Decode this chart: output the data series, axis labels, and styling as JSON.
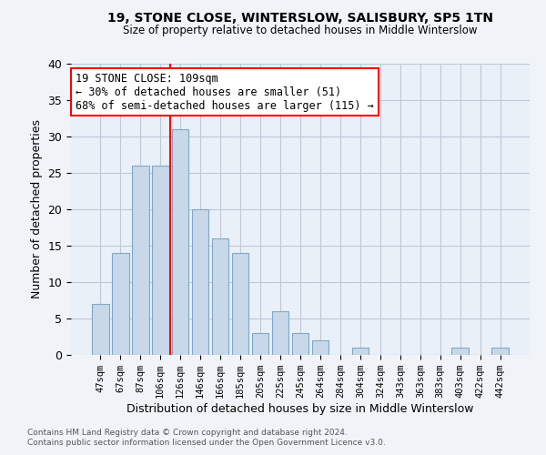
{
  "title1": "19, STONE CLOSE, WINTERSLOW, SALISBURY, SP5 1TN",
  "title2": "Size of property relative to detached houses in Middle Winterslow",
  "xlabel": "Distribution of detached houses by size in Middle Winterslow",
  "ylabel": "Number of detached properties",
  "bar_labels": [
    "47sqm",
    "67sqm",
    "87sqm",
    "106sqm",
    "126sqm",
    "146sqm",
    "166sqm",
    "185sqm",
    "205sqm",
    "225sqm",
    "245sqm",
    "264sqm",
    "284sqm",
    "304sqm",
    "324sqm",
    "343sqm",
    "363sqm",
    "383sqm",
    "403sqm",
    "422sqm",
    "442sqm"
  ],
  "bar_values": [
    7,
    14,
    26,
    26,
    31,
    20,
    16,
    14,
    3,
    6,
    3,
    2,
    0,
    1,
    0,
    0,
    0,
    0,
    1,
    0,
    1
  ],
  "bar_color": "#c8d8e8",
  "bar_edge_color": "#7fa8c8",
  "vline_x": 3.5,
  "vline_color": "red",
  "annotation_text": "19 STONE CLOSE: 109sqm\n← 30% of detached houses are smaller (51)\n68% of semi-detached houses are larger (115) →",
  "annotation_box_color": "white",
  "annotation_box_edge": "red",
  "ylim": [
    0,
    40
  ],
  "yticks": [
    0,
    5,
    10,
    15,
    20,
    25,
    30,
    35,
    40
  ],
  "footer1": "Contains HM Land Registry data © Crown copyright and database right 2024.",
  "footer2": "Contains public sector information licensed under the Open Government Licence v3.0.",
  "grid_color": "#c0c8d8",
  "background_color": "#eaf0f8",
  "fig_background": "#f0f4f8"
}
